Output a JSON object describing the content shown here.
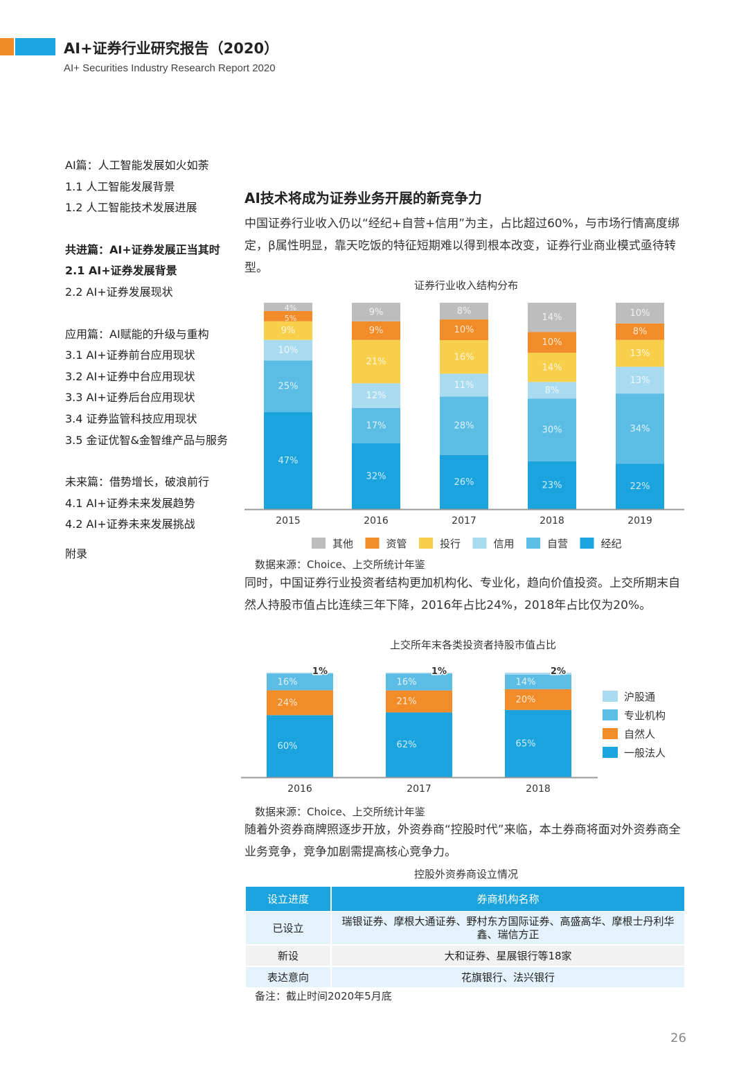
{
  "header": {
    "title": "AI+证券行业研究报告（2020）",
    "subtitle": "AI+ Securities Industry Research Report 2020",
    "colors": {
      "orange": "#f08a24",
      "blue": "#1aa3dc"
    }
  },
  "toc": {
    "items": [
      "AI篇：人工智能发展如火如荼",
      "1.1 人工智能发展背景",
      "1.2 人工智能技术发展进展",
      "共进篇：AI+证券发展正当其时",
      "2.1 AI+证券发展背景",
      "2.2 AI+证券发展现状",
      "应用篇：AI赋能的升级与重构",
      "3.1 AI+证券前台应用现状",
      "3.2 AI+证券中台应用现状",
      "3.3 AI+证券后台应用现状",
      "3.4 证券监管科技应用现状",
      "3.5 金证优智&金智维产品与服务",
      "未来篇：借势增长，破浪前行",
      "4.1 AI+证券未来发展趋势",
      "4.2 AI+证券未来发展挑战",
      "附录"
    ]
  },
  "main": {
    "heading": "AI技术将成为证券业务开展的新竞争力",
    "para1": "中国证券行业收入仍以“经纪+自营+信用”为主，占比超过60%，与市场行情高度绑定，β属性明显，靠天吃饭的特征短期难以得到根本改变，证券行业商业模式亟待转型。",
    "para2": "同时，中国证券行业投资者结构更加机构化、专业化，趋向价值投资。上交所期末自然人持股市值占比连续三年下降，2016年占比24%，2018年占比仅为20%。",
    "para3": "随着外资券商牌照逐步开放，外资券商“控股时代”来临，本土券商将面对外资券商全业务竞争，竞争加剧需提高核心竞争力。",
    "chart1_title": "证券行业收入结构分布",
    "chart1_source": "数据来源：Choice、上交所统计年鉴",
    "chart2_title": "上交所年末各类投资者持股市值占比",
    "chart2_source": "数据来源：Choice、上交所统计年鉴",
    "table_title": "控股外资券商设立情况",
    "note": "备注：截止时间2020年5月底",
    "page_number": "26"
  },
  "table": {
    "headers": [
      "设立进度",
      "券商机构名称"
    ],
    "rows": [
      [
        "已设立",
        "瑞银证券、摩根大通证券、野村东方国际证券、高盛高华、摩根士丹利华鑫、瑞信方正"
      ],
      [
        "新设",
        "大和证券、星展银行等18家"
      ],
      [
        "表达意向",
        "花旗银行、法兴银行"
      ]
    ]
  },
  "chart_data": [
    {
      "type": "bar",
      "stacked": true,
      "title": "证券行业收入结构分布",
      "categories": [
        "2015",
        "2016",
        "2017",
        "2018",
        "2019"
      ],
      "series": [
        {
          "name": "经纪",
          "color": "#1aa3dc",
          "values": [
            47,
            32,
            26,
            23,
            22
          ]
        },
        {
          "name": "自营",
          "color": "#5bbce4",
          "values": [
            25,
            17,
            28,
            30,
            34
          ]
        },
        {
          "name": "信用",
          "color": "#a9dbf0",
          "values": [
            10,
            12,
            11,
            8,
            13
          ]
        },
        {
          "name": "投行",
          "color": "#f8cf4b",
          "values": [
            9,
            21,
            16,
            14,
            13
          ]
        },
        {
          "name": "资管",
          "color": "#f28c28",
          "values": [
            5,
            9,
            10,
            10,
            8
          ]
        },
        {
          "name": "其他",
          "color": "#bdbdbd",
          "values": [
            4,
            9,
            8,
            14,
            10
          ]
        }
      ],
      "legend_order": [
        "其他",
        "资管",
        "投行",
        "信用",
        "自营",
        "经纪"
      ],
      "legend_position": "bottom"
    },
    {
      "type": "bar",
      "stacked": true,
      "title": "上交所年末各类投资者持股市值占比",
      "categories": [
        "2016",
        "2017",
        "2018"
      ],
      "series": [
        {
          "name": "一般法人",
          "color": "#1aa3dc",
          "values": [
            60,
            62,
            65
          ]
        },
        {
          "name": "自然人",
          "color": "#f28c28",
          "values": [
            24,
            21,
            20
          ]
        },
        {
          "name": "专业机构",
          "color": "#5bbce4",
          "values": [
            16,
            16,
            14
          ]
        },
        {
          "name": "沪股通",
          "color": "#a9dbf0",
          "values": [
            1,
            1,
            2
          ]
        }
      ],
      "legend_order": [
        "沪股通",
        "专业机构",
        "自然人",
        "一般法人"
      ],
      "legend_position": "right"
    }
  ]
}
